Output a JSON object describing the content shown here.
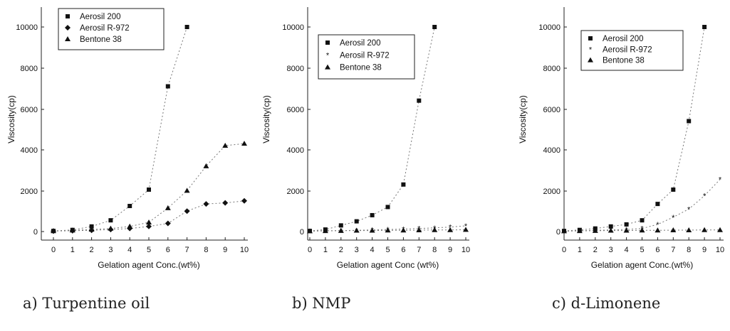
{
  "chart_data": [
    {
      "type": "scatter",
      "caption": "a) Turpentine oil",
      "xlabel": "Gelation agent Conc.(wt%)",
      "ylabel": "Viscosity(cp)",
      "xlim": [
        0,
        10
      ],
      "ylim": [
        0,
        11000
      ],
      "xticks": [
        0,
        1,
        2,
        3,
        4,
        5,
        6,
        7,
        8,
        9,
        10
      ],
      "yticks": [
        0,
        2000,
        4000,
        6000,
        8000,
        10000
      ],
      "legend_position": "top-left",
      "series": [
        {
          "name": "Aerosil 200",
          "marker": "square",
          "x": [
            0,
            1,
            2,
            3,
            4,
            5,
            6,
            7
          ],
          "y": [
            30,
            80,
            250,
            550,
            1250,
            2050,
            7100,
            10000
          ]
        },
        {
          "name": "Aerosil R-972",
          "marker": "diamond",
          "x": [
            0,
            1,
            2,
            3,
            4,
            5,
            6,
            7,
            8,
            9,
            10
          ],
          "y": [
            20,
            40,
            60,
            100,
            150,
            250,
            400,
            1000,
            1350,
            1400,
            1500
          ]
        },
        {
          "name": "Bentone 38",
          "marker": "triangle",
          "x": [
            0,
            1,
            2,
            3,
            4,
            5,
            6,
            7,
            8,
            9,
            10
          ],
          "y": [
            30,
            60,
            100,
            150,
            250,
            450,
            1150,
            2000,
            3200,
            4200,
            4300
          ]
        }
      ]
    },
    {
      "type": "scatter",
      "caption": "b) NMP",
      "xlabel": "Gelation agent Conc (wt%)",
      "ylabel": "Viscosity(cp)",
      "xlim": [
        0,
        10
      ],
      "ylim": [
        0,
        11000
      ],
      "xticks": [
        0,
        1,
        2,
        3,
        4,
        5,
        6,
        7,
        8,
        9,
        10
      ],
      "yticks": [
        0,
        2000,
        4000,
        6000,
        8000,
        10000
      ],
      "legend_position": "top-left",
      "series": [
        {
          "name": "Aerosil 200",
          "marker": "square",
          "x": [
            0,
            1,
            2,
            3,
            4,
            5,
            6,
            7,
            8
          ],
          "y": [
            30,
            100,
            300,
            500,
            800,
            1200,
            2300,
            6400,
            10000
          ]
        },
        {
          "name": "Aerosil R-972",
          "marker": "star",
          "x": [
            0,
            1,
            2,
            3,
            4,
            5,
            6,
            7,
            8,
            9,
            10
          ],
          "y": [
            20,
            40,
            50,
            60,
            80,
            100,
            120,
            150,
            180,
            220,
            280
          ]
        },
        {
          "name": "Bentone 38",
          "marker": "triangle",
          "x": [
            0,
            1,
            2,
            3,
            4,
            5,
            6,
            7,
            8,
            9,
            10
          ],
          "y": [
            20,
            30,
            40,
            50,
            50,
            60,
            60,
            70,
            80,
            80,
            90
          ]
        }
      ]
    },
    {
      "type": "scatter",
      "caption": "c) d-Limonene",
      "xlabel": "Gelation agent Conc.(wt%)",
      "ylabel": "Viscosity(cp)",
      "xlim": [
        0,
        10
      ],
      "ylim": [
        0,
        11000
      ],
      "xticks": [
        0,
        1,
        2,
        3,
        4,
        5,
        6,
        7,
        8,
        9,
        10
      ],
      "yticks": [
        0,
        2000,
        4000,
        6000,
        8000,
        10000
      ],
      "legend_position": "top-left",
      "series": [
        {
          "name": "Aerosil 200",
          "marker": "square",
          "x": [
            0,
            1,
            2,
            3,
            4,
            5,
            6,
            7,
            8,
            9
          ],
          "y": [
            30,
            80,
            150,
            250,
            350,
            550,
            1350,
            2050,
            5400,
            10000
          ]
        },
        {
          "name": "Aerosil R-972",
          "marker": "star",
          "x": [
            0,
            1,
            2,
            3,
            4,
            5,
            6,
            7,
            8,
            9,
            10
          ],
          "y": [
            20,
            40,
            60,
            80,
            100,
            150,
            350,
            700,
            1100,
            1750,
            2550
          ]
        },
        {
          "name": "Bentone 38",
          "marker": "triangle",
          "x": [
            0,
            1,
            2,
            3,
            4,
            5,
            6,
            7,
            8,
            9,
            10
          ],
          "y": [
            20,
            30,
            40,
            50,
            50,
            60,
            60,
            70,
            70,
            80,
            80
          ]
        }
      ]
    }
  ]
}
